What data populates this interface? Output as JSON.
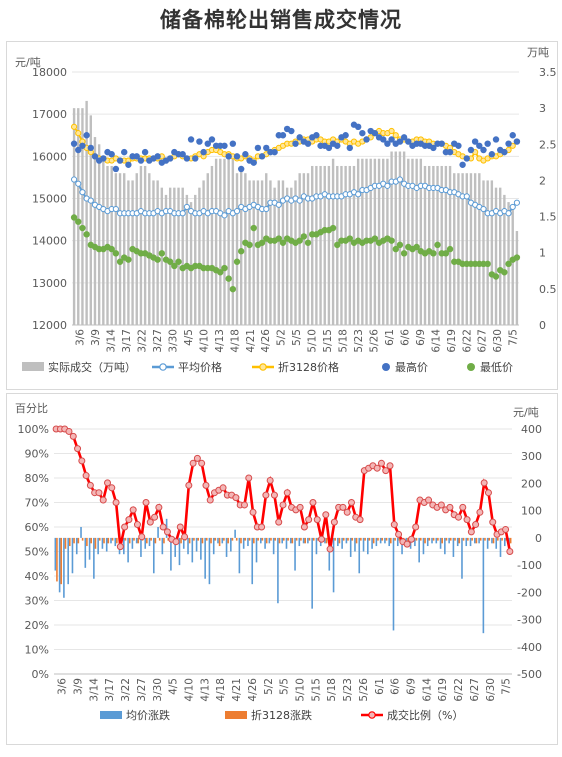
{
  "page": {
    "title": "储备棉轮出销售成交情况"
  },
  "chart_data": [
    {
      "type": "bar",
      "title": "",
      "ylabel_left": "元/吨",
      "ylabel_right": "万吨",
      "ylim_left": [
        12000,
        18000
      ],
      "ylim_right": [
        0,
        3.5
      ],
      "yticks_left": [
        12000,
        13000,
        14000,
        15000,
        16000,
        17000,
        18000
      ],
      "yticks_right": [
        0,
        0.5,
        1,
        1.5,
        2,
        2.5,
        3,
        3.5
      ],
      "x_tick_labels": [
        "3/6",
        "3/9",
        "3/14",
        "3/17",
        "3/22",
        "3/27",
        "3/30",
        "4/5",
        "4/10",
        "4/13",
        "4/18",
        "4/21",
        "4/26",
        "5/2",
        "5/5",
        "5/10",
        "5/15",
        "5/18",
        "5/23",
        "5/26",
        "6/1",
        "6/6",
        "6/9",
        "6/14",
        "6/19",
        "6/22",
        "6/27",
        "6/30",
        "7/5"
      ],
      "legend": [
        "实际成交（万吨）",
        "平均价格",
        "折3128价格",
        "最高价",
        "最低价"
      ],
      "colors": {
        "volume": "#bfbfbf",
        "avg": "#5b9bd5",
        "zhe": "#ffc000",
        "high": "#4472c4",
        "low": "#70ad47"
      },
      "series": [
        {
          "name": "实际成交（万吨）",
          "axis": "right",
          "values": [
            3.0,
            3.0,
            3.0,
            3.1,
            2.9,
            2.6,
            2.5,
            2.3,
            2.2,
            2.2,
            2.1,
            2.1,
            2.1,
            2.0,
            2.0,
            2.1,
            2.2,
            2.2,
            2.1,
            2.0,
            2.0,
            1.9,
            1.8,
            1.9,
            1.9,
            1.9,
            1.9,
            1.8,
            1.7,
            1.8,
            1.9,
            2.0,
            2.1,
            2.2,
            2.3,
            2.3,
            2.3,
            2.4,
            2.3,
            2.1,
            2.2,
            2.1,
            2.0,
            2.0,
            2.0,
            2.0,
            2.1,
            2.0,
            1.9,
            2.0,
            2.0,
            1.9,
            1.9,
            2.0,
            2.1,
            2.1,
            2.1,
            2.2,
            2.2,
            2.2,
            2.2,
            2.2,
            2.3,
            2.2,
            2.2,
            2.2,
            2.2,
            2.2,
            2.3,
            2.3,
            2.3,
            2.3,
            2.3,
            2.3,
            2.3,
            2.3,
            2.4,
            2.4,
            2.4,
            2.4,
            2.3,
            2.3,
            2.3,
            2.3,
            2.2,
            2.2,
            2.2,
            2.2,
            2.2,
            2.2,
            2.2,
            2.1,
            2.1,
            2.1,
            2.1,
            2.1,
            2.1,
            2.1,
            2.0,
            2.0,
            2.0,
            1.9,
            1.9,
            1.8,
            1.7,
            1.6,
            1.3
          ]
        },
        {
          "name": "平均价格",
          "axis": "left",
          "values": [
            15450,
            15350,
            15150,
            15000,
            14950,
            14850,
            14800,
            14750,
            14700,
            14750,
            14750,
            14650,
            14650,
            14650,
            14650,
            14650,
            14700,
            14650,
            14650,
            14650,
            14700,
            14650,
            14700,
            14700,
            14650,
            14650,
            14650,
            14800,
            14700,
            14650,
            14650,
            14700,
            14650,
            14700,
            14700,
            14650,
            14600,
            14700,
            14650,
            14700,
            14800,
            14750,
            14800,
            14850,
            14800,
            14750,
            14750,
            14900,
            14900,
            14850,
            14950,
            15000,
            14950,
            15000,
            14950,
            15050,
            15000,
            15000,
            15050,
            15050,
            15100,
            15050,
            15050,
            15050,
            15050,
            15100,
            15100,
            15150,
            15100,
            15200,
            15200,
            15250,
            15300,
            15300,
            15350,
            15300,
            15400,
            15400,
            15450,
            15350,
            15300,
            15300,
            15250,
            15300,
            15300,
            15250,
            15250,
            15250,
            15200,
            15200,
            15150,
            15150,
            15100,
            15050,
            15050,
            14900,
            14850,
            14800,
            14750,
            14650,
            14650,
            14700,
            14650,
            14700,
            14650,
            14800,
            14900
          ]
        },
        {
          "name": "折3128价格",
          "axis": "left",
          "values": [
            16700,
            16550,
            16350,
            16200,
            16100,
            16000,
            15950,
            15950,
            15900,
            15900,
            15950,
            15900,
            15900,
            15900,
            15950,
            15950,
            15950,
            15950,
            15950,
            15950,
            15950,
            16000,
            15900,
            15950,
            16000,
            16050,
            16000,
            15950,
            15950,
            16000,
            16050,
            16000,
            16100,
            16150,
            16150,
            16100,
            16050,
            16050,
            16000,
            15950,
            15950,
            16000,
            15950,
            15900,
            16000,
            16000,
            16050,
            16100,
            16150,
            16200,
            16250,
            16300,
            16300,
            16350,
            16350,
            16400,
            16400,
            16350,
            16400,
            16400,
            16350,
            16350,
            16400,
            16350,
            16400,
            16350,
            16300,
            16350,
            16300,
            16350,
            16400,
            16450,
            16550,
            16600,
            16550,
            16550,
            16600,
            16500,
            16400,
            16400,
            16350,
            16350,
            16400,
            16400,
            16350,
            16350,
            16300,
            16300,
            16300,
            16250,
            16200,
            16100,
            16050,
            16000,
            15950,
            15950,
            16100,
            15950,
            15900,
            15950,
            16000,
            16000,
            16050,
            16100,
            16150,
            16250,
            16350
          ]
        },
        {
          "name": "最高价",
          "axis": "left",
          "values": [
            16300,
            16150,
            16250,
            16500,
            16200,
            16000,
            15900,
            15950,
            16100,
            16050,
            15700,
            15900,
            16100,
            15800,
            16000,
            16000,
            15900,
            16100,
            15900,
            15950,
            16000,
            15850,
            15900,
            15950,
            16100,
            16050,
            16050,
            15950,
            16400,
            15950,
            16350,
            16100,
            16300,
            16400,
            16250,
            16250,
            16250,
            16000,
            16300,
            16000,
            15700,
            16050,
            15900,
            15850,
            16200,
            16000,
            16200,
            16100,
            16100,
            16500,
            16500,
            16650,
            16600,
            16300,
            16450,
            16350,
            16300,
            16450,
            16500,
            16250,
            16250,
            16200,
            16300,
            16250,
            16450,
            16500,
            16200,
            16750,
            16700,
            16550,
            16400,
            16600,
            16550,
            16450,
            16400,
            16300,
            16400,
            16300,
            16350,
            16450,
            16350,
            16250,
            16300,
            16300,
            16250,
            16250,
            16200,
            16300,
            16300,
            16100,
            16100,
            16300,
            16250,
            15800,
            15950,
            16150,
            16350,
            16250,
            16150,
            16300,
            16050,
            16400,
            16150,
            16100,
            16300,
            16500,
            16350
          ]
        },
        {
          "name": "最低价",
          "axis": "left",
          "values": [
            14550,
            14450,
            14300,
            14150,
            13900,
            13850,
            13800,
            13800,
            13850,
            13800,
            13700,
            13500,
            13600,
            13550,
            13800,
            13750,
            13700,
            13700,
            13650,
            13600,
            13550,
            13700,
            13550,
            13500,
            13400,
            13500,
            13350,
            13400,
            13350,
            13400,
            13400,
            13350,
            13350,
            13350,
            13300,
            13250,
            13350,
            13100,
            12850,
            13500,
            13750,
            13950,
            13900,
            14300,
            13900,
            13950,
            14050,
            14000,
            14000,
            14050,
            13950,
            14050,
            14000,
            13950,
            14000,
            14100,
            13950,
            14150,
            14150,
            14200,
            14250,
            14250,
            14300,
            13900,
            14000,
            14000,
            14050,
            13950,
            14000,
            13950,
            14000,
            14000,
            14050,
            13950,
            14000,
            14050,
            14000,
            13800,
            13900,
            13700,
            13850,
            13800,
            13850,
            13750,
            13700,
            13750,
            13700,
            13900,
            13700,
            13700,
            13800,
            13500,
            13500,
            13450,
            13450,
            13450,
            13450,
            13450,
            13450,
            13450,
            13200,
            13150,
            13300,
            13250,
            13450,
            13550,
            13600
          ]
        }
      ]
    },
    {
      "type": "bar",
      "title": "",
      "ylabel_left": "百分比",
      "ylabel_right": "元/吨",
      "ylim_left": [
        0,
        100
      ],
      "ylim_right": [
        -500,
        400
      ],
      "yticks_left": [
        "0%",
        "10%",
        "20%",
        "30%",
        "40%",
        "50%",
        "60%",
        "70%",
        "80%",
        "90%",
        "100%"
      ],
      "yticks_right": [
        -500,
        -400,
        -300,
        -200,
        -100,
        0,
        100,
        200,
        300,
        400
      ],
      "x_tick_labels": [
        "3/6",
        "3/9",
        "3/14",
        "3/17",
        "3/22",
        "3/27",
        "3/30",
        "4/5",
        "4/10",
        "4/13",
        "4/18",
        "4/21",
        "4/26",
        "5/2",
        "5/5",
        "5/10",
        "5/15",
        "5/18",
        "5/23",
        "5/26",
        "6/1",
        "6/6",
        "6/9",
        "6/14",
        "6/19",
        "6/22",
        "6/27",
        "6/30",
        "7/5"
      ],
      "legend": [
        "均价涨跌",
        "折3128涨跌",
        "成交比例（%）"
      ],
      "colors": {
        "avg_change": "#5b9bd5",
        "zhe_change": "#ed7d31",
        "ratio": "#ff0000"
      },
      "series": [
        {
          "name": "均价涨跌",
          "axis": "right",
          "values": [
            -120,
            -200,
            -220,
            -170,
            -130,
            -60,
            40,
            -110,
            -80,
            -150,
            -60,
            -40,
            -50,
            -20,
            -30,
            -60,
            -60,
            -90,
            -40,
            -20,
            -70,
            -40,
            -30,
            -130,
            40,
            -60,
            70,
            -120,
            -70,
            -100,
            -40,
            -60,
            -90,
            -50,
            -80,
            -150,
            -170,
            -60,
            -20,
            -20,
            -70,
            -50,
            30,
            -130,
            -40,
            -30,
            -170,
            -90,
            -20,
            -40,
            -20,
            -60,
            -240,
            -20,
            -40,
            -20,
            -120,
            -30,
            -20,
            -20,
            -260,
            -60,
            -30,
            -20,
            -120,
            -200,
            -30,
            -40,
            -20,
            -70,
            -50,
            -130,
            -50,
            -60,
            -40,
            -30,
            -20,
            -20,
            -30,
            -340,
            -30,
            -60,
            -20,
            -40,
            -30,
            -90,
            -60,
            -30,
            -20,
            -20,
            -40,
            -60,
            -20,
            -70,
            -30,
            -150,
            -30,
            -30,
            -20,
            -20,
            -350,
            -40,
            -20,
            -40,
            -70,
            -30,
            -40
          ]
        },
        {
          "name": "折3128涨跌",
          "axis": "right",
          "values": [
            -160,
            -170,
            -40,
            -30,
            -20,
            -20,
            -10,
            -30,
            -20,
            -40,
            -10,
            -20,
            -20,
            -10,
            -20,
            -30,
            -10,
            -20,
            -10,
            -20,
            -10,
            -20,
            -10,
            -20,
            -10,
            -20,
            -10,
            -10,
            -10,
            -20,
            -10,
            -20,
            -10,
            -10,
            -20,
            -10,
            -20,
            -10,
            -30,
            -10,
            -20,
            -10,
            -10,
            -20,
            -10,
            -10,
            -20,
            -10,
            -10,
            -20,
            -10,
            -10,
            -20,
            -10,
            -10,
            -20,
            -10,
            -10,
            -20,
            -10,
            -10,
            -10,
            -10,
            -20,
            -10,
            -10,
            -20,
            -10,
            -10,
            -10,
            -20,
            -10,
            -10,
            -10,
            -20,
            -10,
            -10,
            -10,
            -20,
            -10,
            -10,
            -10,
            -20,
            -10,
            -10,
            -10,
            -20,
            -10,
            -10,
            -10,
            -20,
            -10,
            -10,
            -10,
            -20,
            -10,
            -10,
            -10,
            -20,
            -10,
            -10,
            -10,
            -20,
            -10,
            -10,
            -10,
            -20
          ]
        },
        {
          "name": "成交比例（%）",
          "axis": "left",
          "values": [
            100,
            100,
            100,
            99,
            97,
            92,
            87,
            81,
            77,
            74,
            74,
            71,
            78,
            76,
            70,
            52,
            60,
            63,
            67,
            61,
            56,
            70,
            62,
            64,
            68,
            60,
            58,
            55,
            54,
            60,
            56,
            77,
            86,
            88,
            86,
            77,
            71,
            74,
            75,
            76,
            73,
            73,
            72,
            69,
            69,
            80,
            66,
            60,
            60,
            73,
            79,
            73,
            62,
            69,
            74,
            68,
            67,
            68,
            60,
            63,
            70,
            63,
            55,
            65,
            51,
            62,
            68,
            68,
            66,
            70,
            64,
            63,
            83,
            84,
            85,
            84,
            86,
            83,
            85,
            61,
            57,
            54,
            53,
            55,
            60,
            71,
            70,
            71,
            69,
            68,
            69,
            67,
            68,
            65,
            64,
            68,
            63,
            58,
            61,
            66,
            78,
            74,
            62,
            57,
            58,
            59,
            50
          ]
        }
      ]
    }
  ]
}
